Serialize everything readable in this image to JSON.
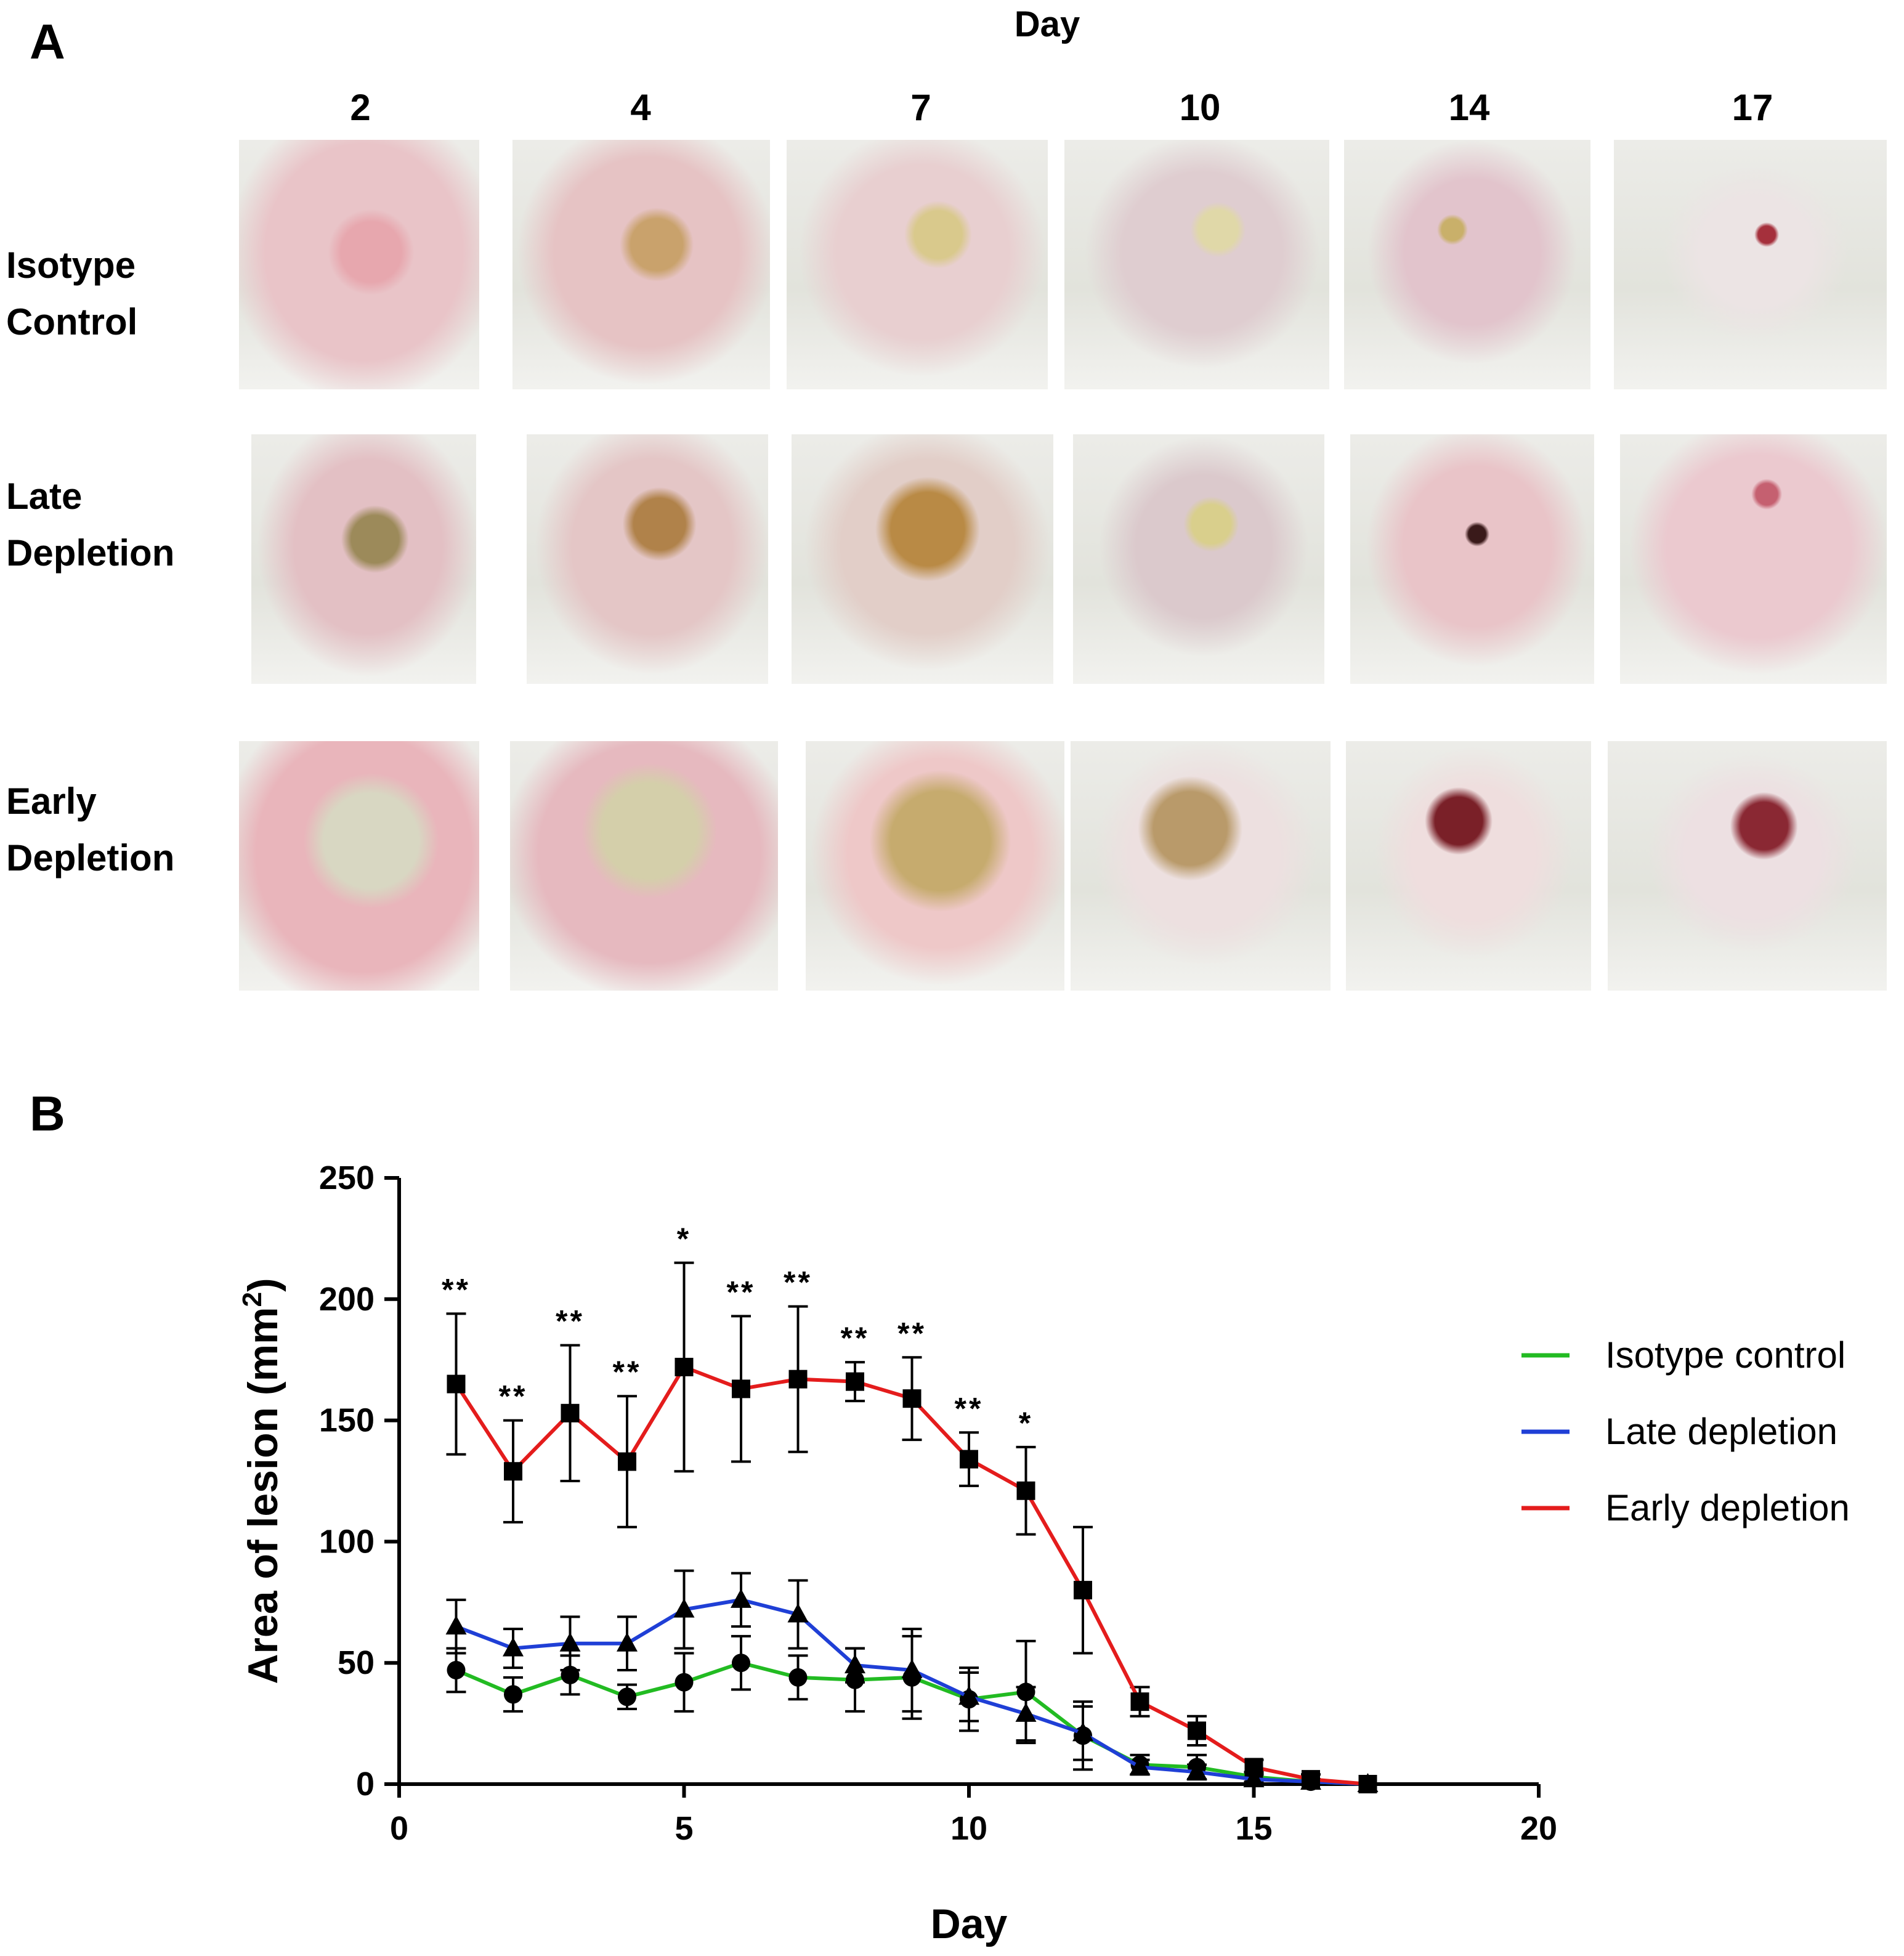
{
  "panel_a": {
    "label": "A",
    "axis_title": "Day",
    "days": [
      "2",
      "4",
      "7",
      "10",
      "14",
      "17"
    ],
    "rows": [
      {
        "label_line1": "Isotype",
        "label_line2": "Control"
      },
      {
        "label_line1": "Late",
        "label_line2": "Depletion"
      },
      {
        "label_line1": "Early",
        "label_line2": "Depletion"
      }
    ]
  },
  "panel_b": {
    "label": "B"
  },
  "colors": {
    "isotype": "#22bb22",
    "late": "#1f3fd6",
    "early": "#e41c1c",
    "bg_photo": "#d6d8cf"
  },
  "chart_data": {
    "type": "line",
    "title": "",
    "xlabel": "Day",
    "ylabel": "Area of lesion (mm",
    "ylabel_sup": "2",
    "ylabel_end": ")",
    "xlim": [
      0,
      20
    ],
    "ylim": [
      0,
      250
    ],
    "xticks": [
      0,
      5,
      10,
      15,
      20
    ],
    "yticks": [
      0,
      50,
      100,
      150,
      200,
      250
    ],
    "x": [
      1,
      2,
      3,
      4,
      5,
      6,
      7,
      8,
      9,
      10,
      11,
      12,
      13,
      14,
      15,
      16,
      17
    ],
    "series": [
      {
        "name": "Isotype control",
        "color_key": "isotype",
        "marker": "circle",
        "values": [
          47,
          37,
          45,
          36,
          42,
          50,
          44,
          43,
          44,
          35,
          38,
          20,
          8,
          7,
          3,
          1,
          0
        ],
        "errors": [
          9,
          7,
          8,
          5,
          12,
          11,
          9,
          13,
          17,
          13,
          21,
          14,
          4,
          5,
          2,
          1,
          0
        ]
      },
      {
        "name": "Late depletion",
        "color_key": "late",
        "marker": "triangle",
        "values": [
          65,
          56,
          58,
          58,
          72,
          76,
          70,
          49,
          47,
          36,
          29,
          21,
          7,
          5,
          2,
          1,
          0
        ],
        "errors": [
          11,
          8,
          11,
          11,
          16,
          11,
          14,
          7,
          17,
          10,
          11,
          11,
          3,
          3,
          2,
          1,
          0
        ]
      },
      {
        "name": "Early depletion",
        "color_key": "early",
        "marker": "square",
        "values": [
          165,
          129,
          153,
          133,
          172,
          163,
          167,
          166,
          159,
          134,
          121,
          80,
          34,
          22,
          7,
          2,
          0
        ],
        "errors": [
          29,
          21,
          28,
          27,
          43,
          30,
          30,
          8,
          17,
          11,
          18,
          26,
          6,
          6,
          3,
          2,
          0
        ]
      }
    ],
    "annotations": [
      {
        "x": 1,
        "text": "**"
      },
      {
        "x": 2,
        "text": "**"
      },
      {
        "x": 3,
        "text": "**"
      },
      {
        "x": 4,
        "text": "**"
      },
      {
        "x": 5,
        "text": "*"
      },
      {
        "x": 6,
        "text": "**"
      },
      {
        "x": 7,
        "text": "**"
      },
      {
        "x": 8,
        "text": "**"
      },
      {
        "x": 9,
        "text": "**"
      },
      {
        "x": 10,
        "text": "**"
      },
      {
        "x": 11,
        "text": "*"
      }
    ],
    "legend_position": "right"
  }
}
